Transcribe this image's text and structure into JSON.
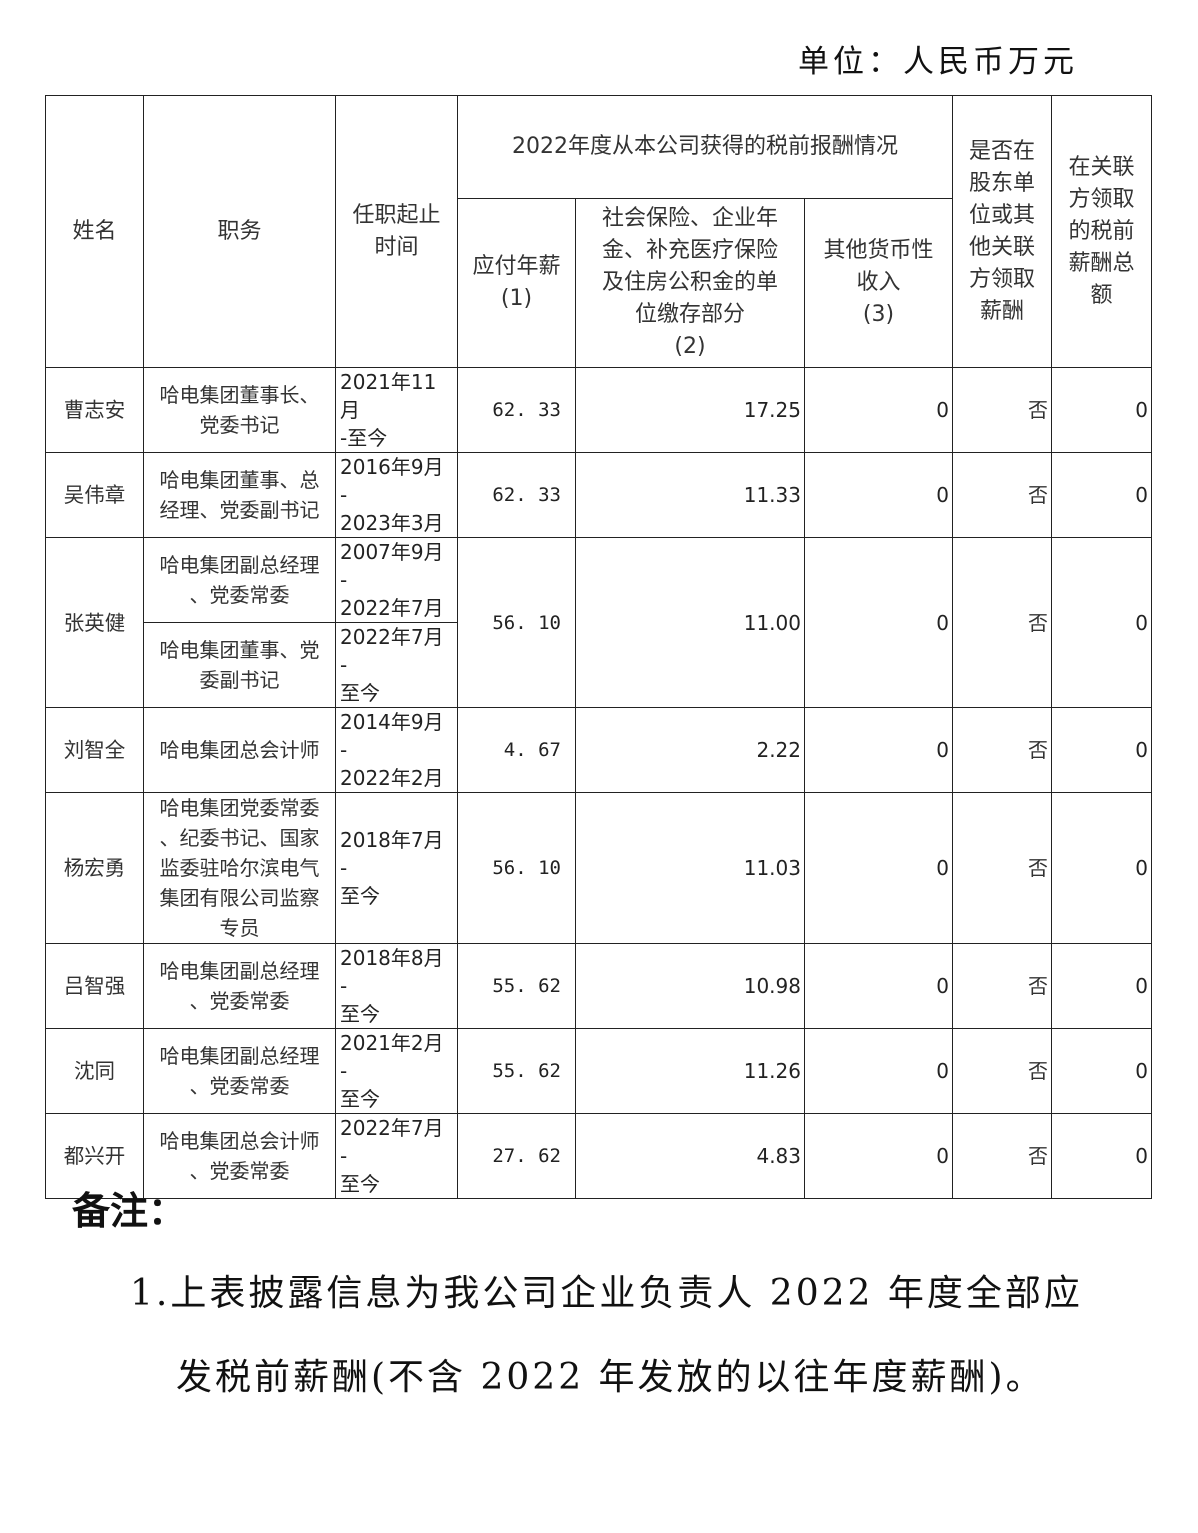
{
  "unit_label": "单位：人民币万元",
  "table": {
    "headers": {
      "name": "姓名",
      "position": "职务",
      "term": "任职起止\n时间",
      "group": "2022年度从本公司获得的税前报酬情况",
      "pay": "应付年薪\n(1)",
      "social": "社会保险、企业年\n金、补充医疗保险\n及住房公积金的单\n位缴存部分\n(2)",
      "other": "其他货币性\n收入\n(3)",
      "related": "是否在\n股东单\n位或其\n他关联\n方领取\n薪酬",
      "related_total": "在关联\n方领取\n的税前\n薪酬总\n额"
    },
    "rows": [
      {
        "name": "曹志安",
        "positions": [
          {
            "duty": "哈电集团董事长、\n党委书记",
            "term": "2021年11月\n-至今"
          }
        ],
        "pay": "62. 33",
        "social": "17.25",
        "other": "0",
        "related": "否",
        "related_total": "0"
      },
      {
        "name": "吴伟章",
        "positions": [
          {
            "duty": "哈电集团董事、总\n经理、党委副书记",
            "term": "2016年9月 -\n2023年3月"
          }
        ],
        "pay": "62. 33",
        "social": "11.33",
        "other": "0",
        "related": "否",
        "related_total": "0"
      },
      {
        "name": "张英健",
        "positions": [
          {
            "duty": "哈电集团副总经理\n、党委常委",
            "term": "2007年9月 -\n2022年7月"
          },
          {
            "duty": "哈电集团董事、党\n委副书记",
            "term": "2022年7月 -\n至今"
          }
        ],
        "pay": "56. 10",
        "social": "11.00",
        "other": "0",
        "related": "否",
        "related_total": "0"
      },
      {
        "name": "刘智全",
        "positions": [
          {
            "duty": "哈电集团总会计师",
            "term": "2014年9月 -\n2022年2月"
          }
        ],
        "pay": "4. 67",
        "social": "2.22",
        "other": "0",
        "related": "否",
        "related_total": "0"
      },
      {
        "name": "杨宏勇",
        "positions": [
          {
            "duty": "哈电集团党委常委\n、纪委书记、国家\n监委驻哈尔滨电气\n集团有限公司监察\n专员",
            "term": "2018年7月 -\n至今"
          }
        ],
        "pay": "56. 10",
        "social": "11.03",
        "other": "0",
        "related": "否",
        "related_total": "0"
      },
      {
        "name": "吕智强",
        "positions": [
          {
            "duty": "哈电集团副总经理\n、党委常委",
            "term": "2018年8月 -\n至今"
          }
        ],
        "pay": "55. 62",
        "social": "10.98",
        "other": "0",
        "related": "否",
        "related_total": "0"
      },
      {
        "name": "沈同",
        "positions": [
          {
            "duty": "哈电集团副总经理\n、党委常委",
            "term": "2021年2月 -\n至今"
          }
        ],
        "pay": "55. 62",
        "social": "11.26",
        "other": "0",
        "related": "否",
        "related_total": "0"
      },
      {
        "name": "都兴开",
        "positions": [
          {
            "duty": "哈电集团总会计师\n、党委常委",
            "term": "2022年7月 -\n至今"
          }
        ],
        "pay": "27. 62",
        "social": "4.83",
        "other": "0",
        "related": "否",
        "related_total": "0"
      }
    ]
  },
  "notes": {
    "title": "备注：",
    "items": [
      "1.上表披露信息为我公司企业负责人 2022 年度全部应",
      "发税前薪酬(不含 2022 年发放的以往年度薪酬)。"
    ]
  }
}
